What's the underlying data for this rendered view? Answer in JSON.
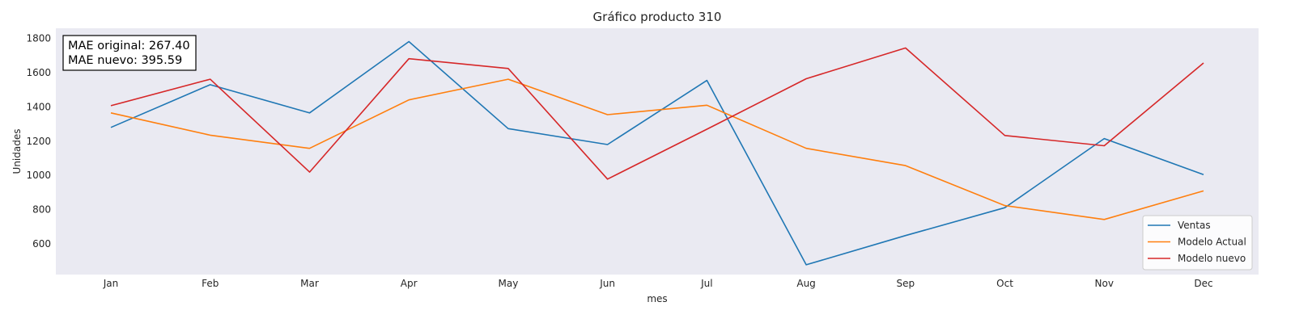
{
  "chart_data": {
    "type": "line",
    "title": "Gráfico producto 310",
    "xlabel": "mes",
    "ylabel": "Unidades",
    "categories": [
      "Jan",
      "Feb",
      "Mar",
      "Apr",
      "May",
      "Jun",
      "Jul",
      "Aug",
      "Sep",
      "Oct",
      "Nov",
      "Dec"
    ],
    "ylim": [
      420,
      1860
    ],
    "yticks": [
      600,
      800,
      1000,
      1200,
      1400,
      1600,
      1800
    ],
    "grid": false,
    "legend_position": "lower-right",
    "background_color": "#eaeaf2",
    "series": [
      {
        "name": "Ventas",
        "color": "#1f77b4",
        "values": [
          1280,
          1530,
          1365,
          1782,
          1273,
          1180,
          1555,
          477,
          648,
          811,
          1215,
          1004
        ]
      },
      {
        "name": "Modelo Actual",
        "color": "#ff7f0e",
        "values": [
          1365,
          1235,
          1158,
          1441,
          1562,
          1355,
          1410,
          1158,
          1057,
          823,
          742,
          909
        ]
      },
      {
        "name": "Modelo nuevo",
        "color": "#d62728",
        "values": [
          1407,
          1562,
          1019,
          1682,
          1625,
          978,
          1270,
          1565,
          1745,
          1233,
          1173,
          1657
        ]
      }
    ],
    "annotations": [
      "MAE original: 267.40",
      "MAE nuevo: 395.59"
    ]
  }
}
